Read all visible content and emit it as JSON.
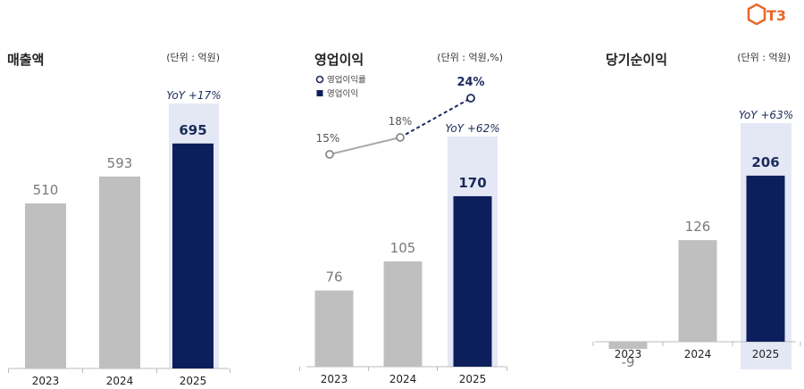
{
  "logo": {
    "text": "T3"
  },
  "chart_data": [
    {
      "type": "bar",
      "title": "매출액",
      "unit": "(단위 : 억원)",
      "categories": [
        "2023",
        "2024",
        "2025"
      ],
      "values": [
        510,
        593,
        695
      ],
      "value_labels": [
        "510",
        "593",
        "695"
      ],
      "highlight_index": 2,
      "annotation": "YoY +17%",
      "ylim": [
        0,
        780
      ],
      "colors": {
        "base": "#bfbfbf",
        "highlight": "#0c1f5c",
        "band": "#e4e8f5"
      }
    },
    {
      "type": "bar",
      "title": "영업이익",
      "unit": "(단위 : 억원,%)",
      "categories": [
        "2023",
        "2024",
        "2025"
      ],
      "values": [
        76,
        105,
        170
      ],
      "value_labels": [
        "76",
        "105",
        "170"
      ],
      "highlight_index": 2,
      "annotation": "YoY +62%",
      "ylim": [
        0,
        250
      ],
      "line_series": {
        "name": "영업이익률",
        "values": [
          15,
          18,
          24
        ],
        "labels": [
          "15%",
          "18%",
          "24%"
        ]
      },
      "bar_series_name": "영업이익",
      "colors": {
        "base": "#bfbfbf",
        "highlight": "#0c1f5c",
        "band": "#e4e8f5",
        "line_grey": "#a8a8a8",
        "line_navy": "#1a2a5a"
      }
    },
    {
      "type": "bar",
      "title": "당기순이익",
      "unit": "(단위 : 억원)",
      "categories": [
        "2023",
        "2024",
        "2025"
      ],
      "values": [
        -9,
        126,
        206
      ],
      "value_labels": [
        "-9",
        "126",
        "206"
      ],
      "highlight_index": 2,
      "annotation": "YoY +63%",
      "ylim": [
        -30,
        280
      ],
      "colors": {
        "base": "#bfbfbf",
        "highlight": "#0c1f5c",
        "band": "#e4e8f5"
      }
    }
  ]
}
